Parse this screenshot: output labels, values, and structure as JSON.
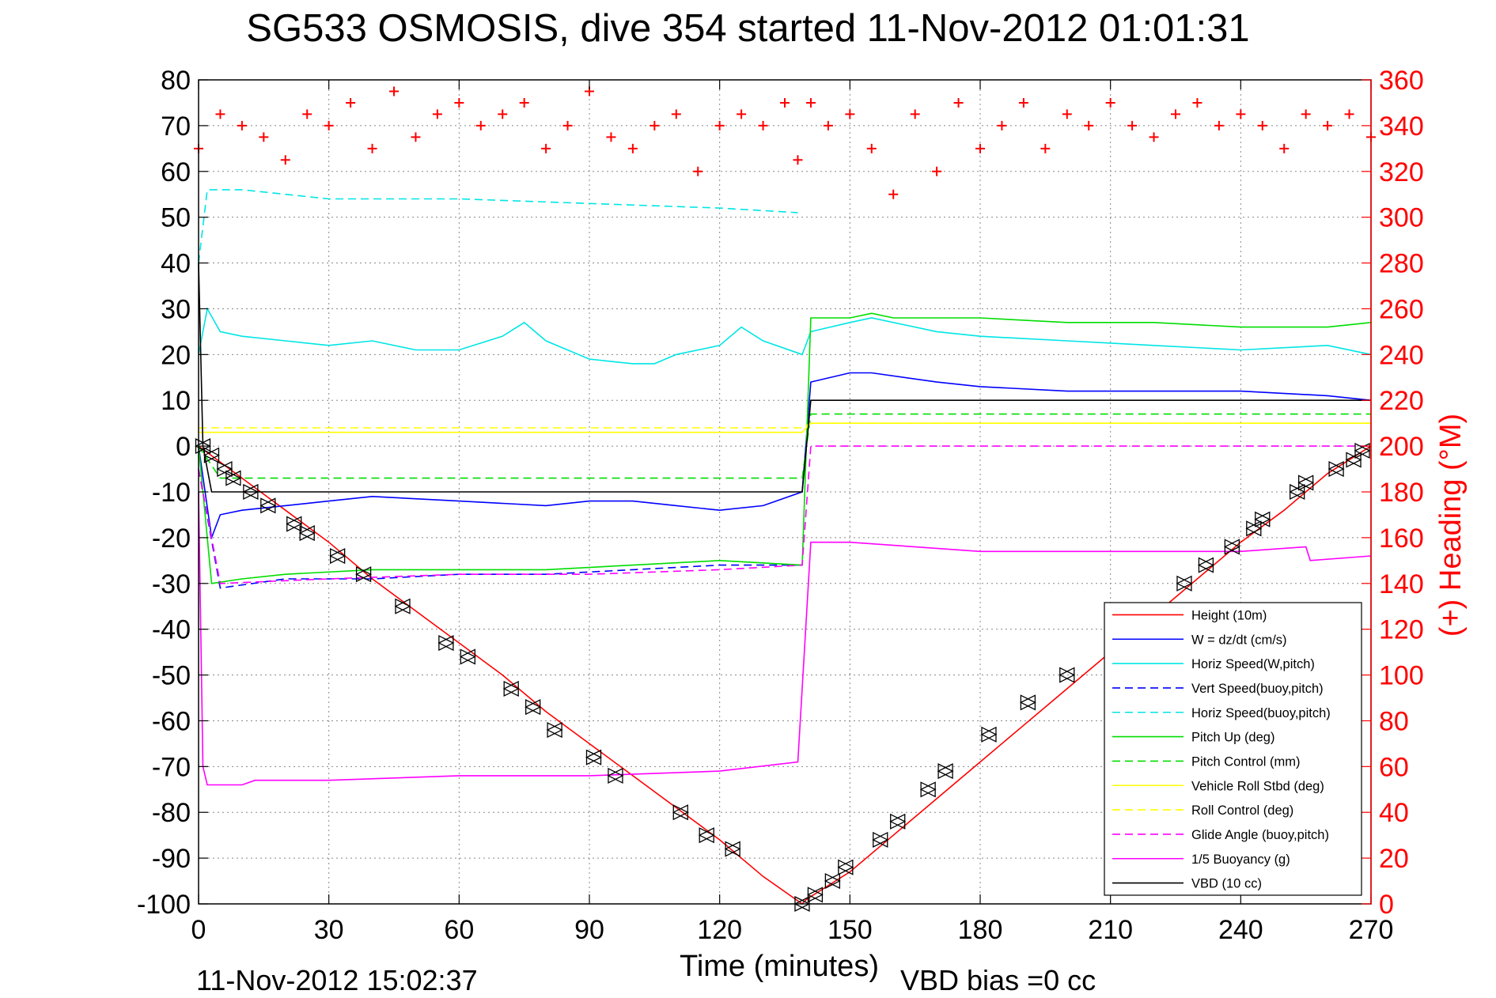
{
  "chart_data": {
    "type": "line",
    "title": "SG533 OSMOSIS, dive 354 started 11-Nov-2012 01:01:31",
    "xlabel": "Time (minutes)",
    "ylabel": "",
    "ylabel_right": "(+) Heading (°M)",
    "xlim": [
      0,
      270
    ],
    "ylim": [
      -100,
      80
    ],
    "ylim_right": [
      0,
      360
    ],
    "x_ticks": [
      "0",
      "30",
      "60",
      "90",
      "120",
      "150",
      "180",
      "210",
      "240",
      "270"
    ],
    "y_ticks": [
      "80",
      "70",
      "60",
      "50",
      "40",
      "30",
      "20",
      "10",
      "0",
      "-10",
      "-20",
      "-30",
      "-40",
      "-50",
      "-60",
      "-70",
      "-80",
      "-90",
      "-100"
    ],
    "y_right_ticks": [
      "360",
      "340",
      "320",
      "300",
      "280",
      "260",
      "240",
      "220",
      "200",
      "180",
      "160",
      "140",
      "120",
      "100",
      "80",
      "60",
      "40",
      "20",
      "0"
    ],
    "grid": true,
    "legend_position": "bottom-right",
    "footer_left": "11-Nov-2012 15:02:37",
    "footer_right": "VBD bias =0 cc",
    "series": [
      {
        "name": "Height (10m)",
        "color": "#ff0000",
        "style": "solid",
        "x": [
          0,
          10,
          20,
          30,
          40,
          50,
          60,
          70,
          80,
          90,
          100,
          110,
          120,
          130,
          139,
          140,
          150,
          160,
          170,
          180,
          190,
          200,
          210,
          220,
          230,
          240,
          250,
          260,
          270
        ],
        "y": [
          0,
          -7,
          -14,
          -21,
          -29,
          -36,
          -43,
          -50,
          -58,
          -65,
          -72,
          -79,
          -86,
          -94,
          -100,
          -99,
          -93,
          -85,
          -77,
          -69,
          -61,
          -53,
          -45,
          -37,
          -29,
          -21,
          -14,
          -6,
          0
        ]
      },
      {
        "name": "W = dz/dt (cm/s)",
        "color": "#0000ff",
        "style": "solid",
        "x": [
          0,
          3,
          5,
          10,
          20,
          30,
          40,
          60,
          80,
          90,
          100,
          110,
          120,
          130,
          139,
          141,
          150,
          155,
          170,
          180,
          200,
          220,
          240,
          260,
          270
        ],
        "y": [
          0,
          -20,
          -15,
          -14,
          -13,
          -12,
          -11,
          -12,
          -13,
          -12,
          -12,
          -13,
          -14,
          -13,
          -10,
          14,
          16,
          16,
          14,
          13,
          12,
          12,
          12,
          11,
          10
        ]
      },
      {
        "name": "Horiz Speed(W,pitch)",
        "color": "#00e5e5",
        "style": "solid",
        "x": [
          0,
          2,
          5,
          10,
          20,
          30,
          40,
          50,
          60,
          70,
          75,
          80,
          90,
          100,
          105,
          110,
          120,
          125,
          130,
          139,
          141,
          150,
          155,
          170,
          180,
          200,
          220,
          240,
          260,
          270
        ],
        "y": [
          20,
          30,
          25,
          24,
          23,
          22,
          23,
          21,
          21,
          24,
          27,
          23,
          19,
          18,
          18,
          20,
          22,
          26,
          23,
          20,
          25,
          27,
          28,
          25,
          24,
          23,
          22,
          21,
          22,
          20
        ]
      },
      {
        "name": "Vert Speed(buoy,pitch)",
        "color": "#0000ff",
        "style": "dashed",
        "x": [
          0,
          5,
          20,
          40,
          60,
          80,
          100,
          120,
          139
        ],
        "y": [
          -5,
          -31,
          -29,
          -29,
          -28,
          -28,
          -27,
          -26,
          -26
        ]
      },
      {
        "name": "Horiz Speed(buoy,pitch)",
        "color": "#00e5e5",
        "style": "dashed",
        "x": [
          0,
          2,
          10,
          30,
          60,
          90,
          120,
          138
        ],
        "y": [
          40,
          56,
          56,
          54,
          54,
          53,
          52,
          51
        ]
      },
      {
        "name": "Pitch Up (deg)",
        "color": "#00dd00",
        "style": "solid",
        "x": [
          0,
          3,
          10,
          20,
          40,
          60,
          80,
          100,
          120,
          139,
          141,
          150,
          155,
          160,
          180,
          200,
          220,
          240,
          260,
          270
        ],
        "y": [
          0,
          -30,
          -29,
          -28,
          -27,
          -27,
          -27,
          -26,
          -25,
          -26,
          28,
          28,
          29,
          28,
          28,
          27,
          27,
          26,
          26,
          27
        ]
      },
      {
        "name": "Pitch Control (mm)",
        "color": "#00dd00",
        "style": "dashed",
        "x": [
          0,
          5,
          30,
          60,
          90,
          120,
          139,
          141,
          180,
          220,
          270
        ],
        "y": [
          0,
          -7,
          -7,
          -7,
          -7,
          -7,
          -7,
          7,
          7,
          7,
          7
        ]
      },
      {
        "name": "Vehicle Roll Stbd (deg)",
        "color": "#ffff00",
        "style": "solid",
        "x": [
          0,
          10,
          30,
          60,
          90,
          120,
          139,
          141,
          180,
          220,
          270
        ],
        "y": [
          3,
          3,
          3,
          3,
          3,
          3,
          3,
          5,
          5,
          5,
          5
        ]
      },
      {
        "name": "Roll Control (deg)",
        "color": "#ffff00",
        "style": "dashed",
        "x": [
          0,
          30,
          60,
          90,
          120,
          139,
          141,
          180,
          220,
          270
        ],
        "y": [
          4,
          4,
          4,
          4,
          4,
          4,
          5,
          5,
          5,
          5
        ]
      },
      {
        "name": "Glide Angle (buoy,pitch)",
        "color": "#ff00ff",
        "style": "dashed",
        "x": [
          0,
          5,
          30,
          60,
          90,
          120,
          139,
          141,
          180,
          220,
          270
        ],
        "y": [
          -5,
          -30,
          -29,
          -28,
          -28,
          -27,
          -26,
          0,
          0,
          0,
          0
        ]
      },
      {
        "name": "1/5 Buoyancy (g)",
        "color": "#ff00ff",
        "style": "solid",
        "x": [
          0,
          1,
          2,
          10,
          13,
          30,
          60,
          90,
          120,
          138,
          141,
          150,
          180,
          200,
          220,
          240,
          255,
          256,
          270
        ],
        "y": [
          -10,
          -70,
          -74,
          -74,
          -73,
          -73,
          -72,
          -72,
          -71,
          -69,
          -21,
          -21,
          -23,
          -23,
          -23,
          -23,
          -22,
          -25,
          -24
        ]
      },
      {
        "name": "VBD (10 cc)",
        "color": "#000000",
        "style": "solid",
        "x": [
          0,
          1,
          3,
          50,
          100,
          139,
          141,
          180,
          230,
          270
        ],
        "y": [
          40,
          0,
          -10,
          -10,
          -10,
          -10,
          10,
          10,
          10,
          10
        ]
      },
      {
        "name": "",
        "axis": "right",
        "color": "#ff0000",
        "style": "markers",
        "x": [
          0,
          5,
          10,
          15,
          20,
          25,
          30,
          35,
          40,
          45,
          50,
          55,
          60,
          65,
          70,
          75,
          80,
          85,
          90,
          95,
          100,
          105,
          110,
          115,
          120,
          125,
          130,
          135,
          138,
          141,
          145,
          150,
          155,
          160,
          165,
          170,
          175,
          180,
          185,
          190,
          195,
          200,
          205,
          210,
          215,
          220,
          225,
          230,
          235,
          240,
          245,
          250,
          255,
          260,
          265,
          270
        ],
        "y": [
          330,
          345,
          340,
          335,
          325,
          345,
          340,
          350,
          330,
          355,
          335,
          345,
          350,
          340,
          345,
          350,
          330,
          340,
          355,
          335,
          330,
          340,
          345,
          320,
          340,
          345,
          340,
          350,
          325,
          350,
          340,
          345,
          330,
          310,
          345,
          320,
          350,
          330,
          340,
          350,
          330,
          345,
          340,
          350,
          340,
          335,
          345,
          350,
          340,
          345,
          340,
          330,
          345,
          340,
          345,
          335
        ]
      }
    ],
    "markers": {
      "name": "",
      "color": "#000000",
      "x": [
        1,
        3,
        6,
        8,
        12,
        16,
        22,
        25,
        32,
        38,
        47,
        57,
        62,
        72,
        77,
        82,
        91,
        96,
        111,
        117,
        123,
        139,
        142,
        146,
        149,
        157,
        161,
        168,
        172,
        182,
        191,
        200,
        227,
        232,
        238,
        243,
        245,
        253,
        255,
        262,
        266,
        268
      ],
      "y": [
        0,
        -2,
        -5,
        -7,
        -10,
        -13,
        -17,
        -19,
        -24,
        -28,
        -35,
        -43,
        -46,
        -53,
        -57,
        -62,
        -68,
        -72,
        -80,
        -85,
        -88,
        -100,
        -98,
        -95,
        -92,
        -86,
        -82,
        -75,
        -71,
        -63,
        -56,
        -50,
        -30,
        -26,
        -22,
        -18,
        -16,
        -10,
        -8,
        -5,
        -3,
        -1
      ]
    }
  }
}
